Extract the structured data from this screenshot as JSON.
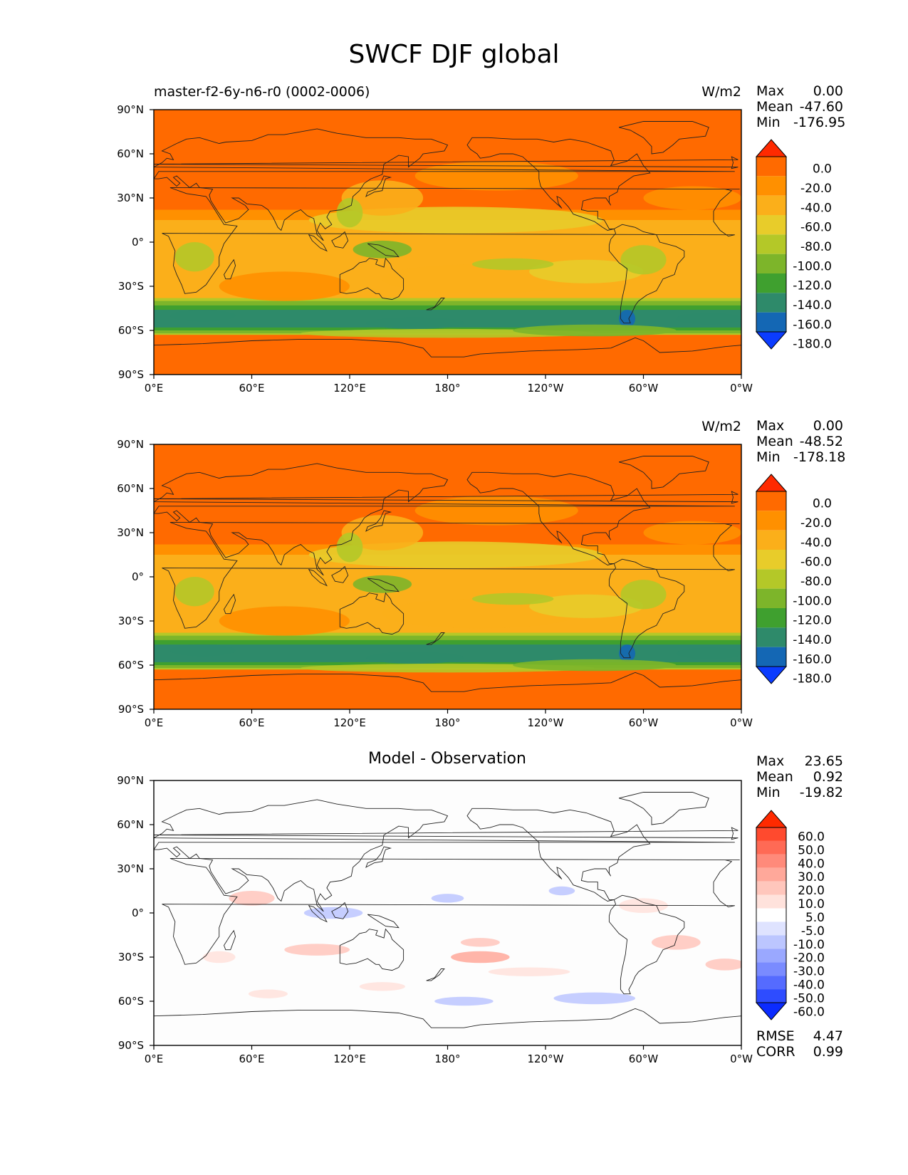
{
  "figure": {
    "title": "SWCF DJF global"
  },
  "axes": {
    "lat_labels": [
      "90°N",
      "60°N",
      "30°N",
      "0°",
      "30°S",
      "60°S",
      "90°S"
    ],
    "lon_labels": [
      "0°E",
      "60°E",
      "120°E",
      "180°",
      "120°W",
      "60°W",
      "0°W"
    ]
  },
  "panels": [
    {
      "id": "test",
      "left_title": "master-f2-6y-n6-r0 (0002-0006)",
      "center_title": "",
      "units": "W/m2",
      "stats": [
        {
          "label": "Max",
          "value": "0.00"
        },
        {
          "label": "Mean",
          "value": "-47.60"
        },
        {
          "label": "Min",
          "value": "-176.95"
        }
      ],
      "colorbar": {
        "levels": [
          "0.0",
          "-20.0",
          "-40.0",
          "-60.0",
          "-80.0",
          "-100.0",
          "-120.0",
          "-140.0",
          "-160.0",
          "-180.0"
        ],
        "colors": [
          "#ff2a00",
          "#ff6a00",
          "#ff9000",
          "#fbaf1a",
          "#e8cc2a",
          "#b4c828",
          "#7db52a",
          "#3fa02f",
          "#2e8a6a",
          "#1467b4",
          "#0b3cff"
        ]
      }
    },
    {
      "id": "reference",
      "left_title": "",
      "center_title": "",
      "units": "W/m2",
      "stats": [
        {
          "label": "Max",
          "value": "0.00"
        },
        {
          "label": "Mean",
          "value": "-48.52"
        },
        {
          "label": "Min",
          "value": "-178.18"
        }
      ],
      "colorbar": {
        "levels": [
          "0.0",
          "-20.0",
          "-40.0",
          "-60.0",
          "-80.0",
          "-100.0",
          "-120.0",
          "-140.0",
          "-160.0",
          "-180.0"
        ],
        "colors": [
          "#ff2a00",
          "#ff6a00",
          "#ff9000",
          "#fbaf1a",
          "#e8cc2a",
          "#b4c828",
          "#7db52a",
          "#3fa02f",
          "#2e8a6a",
          "#1467b4",
          "#0b3cff"
        ]
      }
    },
    {
      "id": "diff",
      "left_title": "",
      "center_title": "Model - Observation",
      "units": "",
      "stats": [
        {
          "label": "Max",
          "value": "23.65"
        },
        {
          "label": "Mean",
          "value": "0.92"
        },
        {
          "label": "Min",
          "value": "-19.82"
        }
      ],
      "extra_stats": [
        {
          "label": "RMSE",
          "value": "4.47"
        },
        {
          "label": "CORR",
          "value": "0.99"
        }
      ],
      "colorbar": {
        "levels": [
          "60.0",
          "50.0",
          "40.0",
          "30.0",
          "20.0",
          "10.0",
          "5.0",
          "-5.0",
          "-10.0",
          "-20.0",
          "-30.0",
          "-40.0",
          "-50.0",
          "-60.0"
        ],
        "colors": [
          "#ff2a00",
          "#ff4a2e",
          "#ff6a55",
          "#ff8a7a",
          "#ffa89a",
          "#ffc6bc",
          "#ffe2dc",
          "#ffffff",
          "#dfe3ff",
          "#bcc6ff",
          "#9aa8ff",
          "#7a8bff",
          "#556bff",
          "#2e4cff",
          "#0b2bff"
        ]
      }
    }
  ]
}
